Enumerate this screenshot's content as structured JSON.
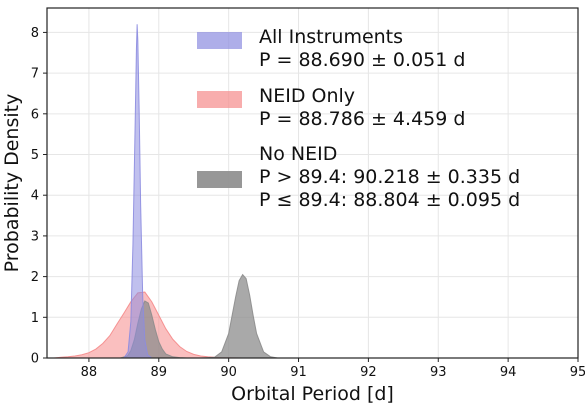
{
  "chart_data": {
    "type": "area",
    "xlabel": "Orbital Period [d]",
    "ylabel": "Probability Density",
    "xlim": [
      87.4,
      95.0
    ],
    "ylim": [
      0,
      8.6
    ],
    "xticks": [
      88,
      89,
      90,
      91,
      92,
      93,
      94,
      95
    ],
    "yticks": [
      0,
      1,
      2,
      3,
      4,
      5,
      6,
      7,
      8
    ],
    "grid": true,
    "legend_position": "top-right",
    "series": [
      {
        "name": "NEID Only",
        "color": "#f58a8a",
        "opacity": 0.55,
        "lines": [
          "NEID Only",
          "P = 88.786 ± 4.459 d"
        ],
        "x": [
          87.5,
          87.6,
          87.7,
          87.8,
          87.9,
          88.0,
          88.1,
          88.2,
          88.3,
          88.4,
          88.5,
          88.6,
          88.7,
          88.8,
          88.9,
          89.0,
          89.1,
          89.2,
          89.3,
          89.4,
          89.5,
          89.6,
          89.7,
          89.8,
          89.9,
          90.0,
          90.2,
          90.5
        ],
        "y": [
          0.0,
          0.02,
          0.03,
          0.05,
          0.08,
          0.13,
          0.22,
          0.36,
          0.55,
          0.83,
          1.1,
          1.38,
          1.6,
          1.62,
          1.38,
          1.05,
          0.72,
          0.46,
          0.28,
          0.16,
          0.09,
          0.05,
          0.03,
          0.02,
          0.01,
          0.01,
          0.0,
          0.0
        ]
      },
      {
        "name": "No NEID",
        "color": "#8c8c8c",
        "opacity": 0.75,
        "lines": [
          "No NEID",
          "P > 89.4: 90.218 ± 0.335 d",
          "P ≤ 89.4: 88.804 ± 0.095 d"
        ],
        "x": [
          88.45,
          88.55,
          88.6,
          88.65,
          88.7,
          88.75,
          88.8,
          88.85,
          88.9,
          88.95,
          89.0,
          89.05,
          89.1,
          89.2,
          89.3,
          89.4,
          89.6,
          89.8,
          89.9,
          90.0,
          90.05,
          90.1,
          90.15,
          90.2,
          90.25,
          90.3,
          90.35,
          90.4,
          90.5,
          90.6,
          90.7
        ],
        "y": [
          0.0,
          0.05,
          0.18,
          0.45,
          0.85,
          1.2,
          1.4,
          1.35,
          1.05,
          0.7,
          0.4,
          0.22,
          0.1,
          0.03,
          0.01,
          0.0,
          0.0,
          0.02,
          0.15,
          0.6,
          1.05,
          1.5,
          1.9,
          2.05,
          1.95,
          1.55,
          1.05,
          0.6,
          0.15,
          0.03,
          0.0
        ]
      },
      {
        "name": "All Instruments",
        "color": "#8c8ce0",
        "opacity": 0.55,
        "lines": [
          "All Instruments",
          "P = 88.690 ± 0.051 d"
        ],
        "x": [
          88.5,
          88.56,
          88.6,
          88.63,
          88.66,
          88.68,
          88.69,
          88.7,
          88.72,
          88.74,
          88.77,
          88.8,
          88.84,
          88.9
        ],
        "y": [
          0.0,
          0.15,
          0.9,
          2.8,
          5.6,
          7.6,
          8.2,
          7.8,
          6.0,
          3.8,
          1.5,
          0.45,
          0.08,
          0.0
        ]
      }
    ]
  }
}
